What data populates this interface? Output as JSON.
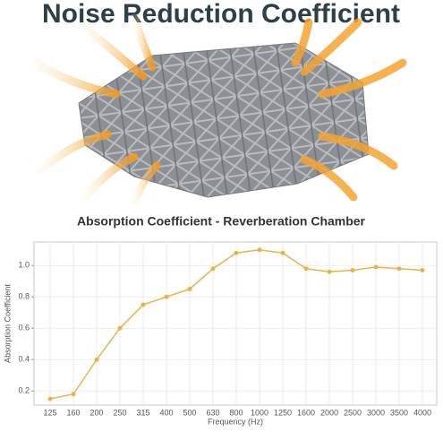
{
  "title": "Noise Reduction Coefficient",
  "chart_data": {
    "type": "line",
    "title": "Absorption Coefficient - Reverberation Chamber",
    "x_label": "Frequency (Hz)",
    "y_label": "Absorption Coefficient",
    "categories": [
      "125",
      "160",
      "200",
      "250",
      "315",
      "400",
      "500",
      "630",
      "800",
      "1000",
      "1250",
      "1600",
      "2000",
      "2500",
      "3000",
      "3500",
      "4000"
    ],
    "values": [
      0.15,
      0.18,
      0.4,
      0.6,
      0.75,
      0.8,
      0.85,
      0.98,
      1.08,
      1.1,
      1.08,
      0.98,
      0.96,
      0.97,
      0.99,
      0.98,
      0.97
    ],
    "color": "#e8b24a",
    "ylim": [
      0.11,
      1.15
    ],
    "yticks": [
      0.2,
      0.4,
      0.6,
      0.8,
      {
        "value": 1,
        "label": "1.0"
      }
    ],
    "grid": true
  }
}
